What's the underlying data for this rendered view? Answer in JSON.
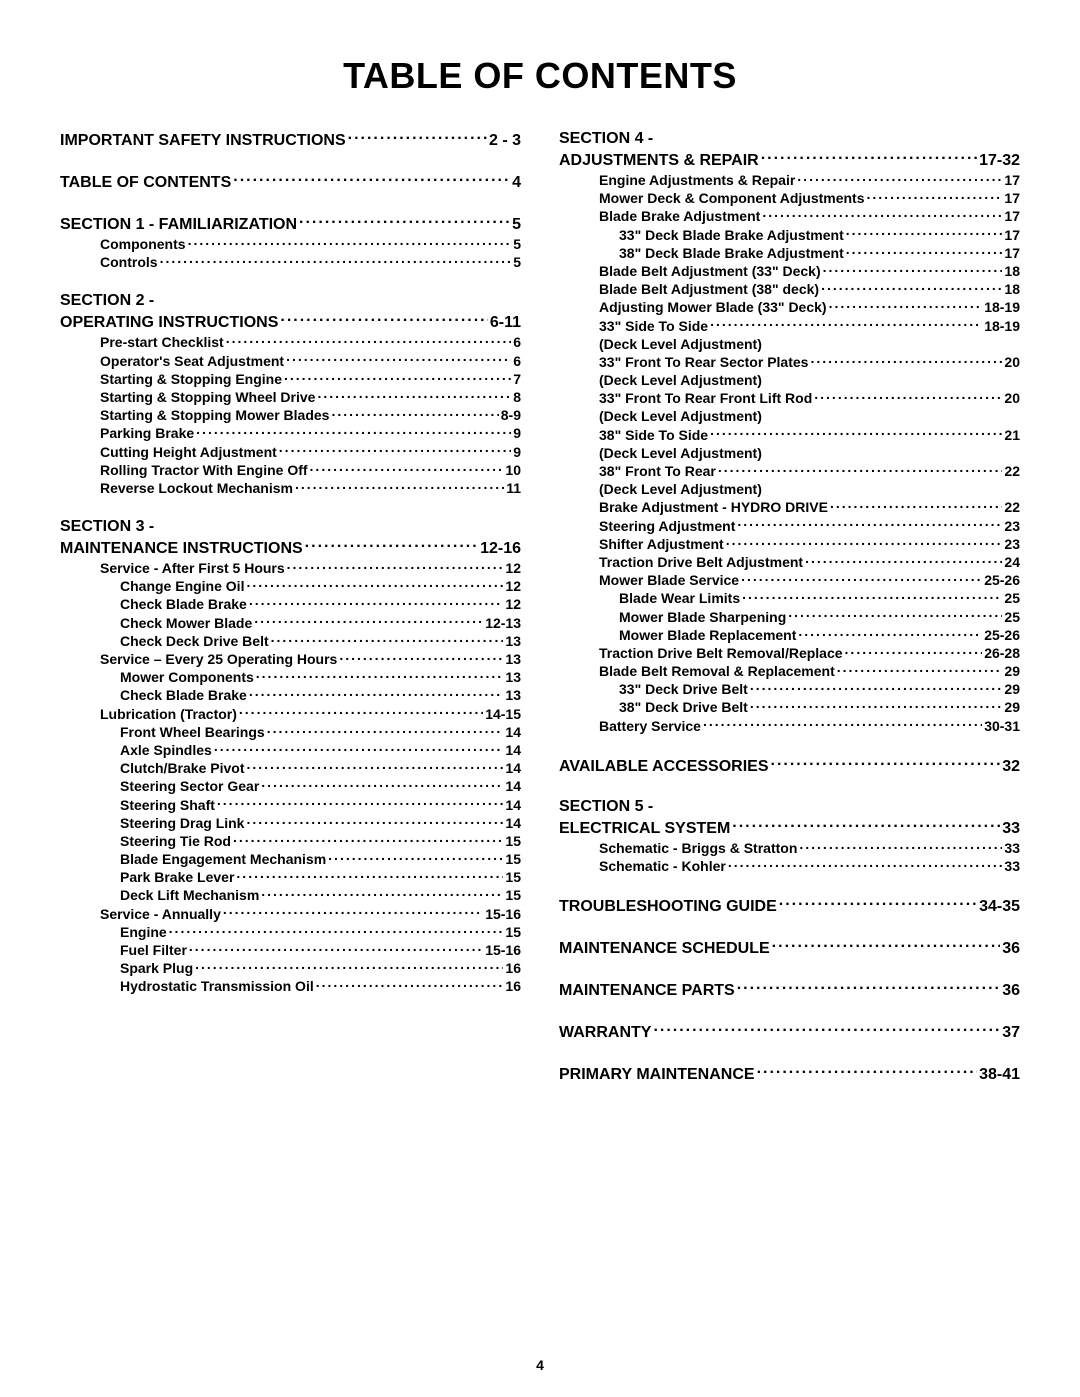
{
  "title": "TABLE OF CONTENTS",
  "page_number": "4",
  "left": [
    {
      "level": 0,
      "first": true,
      "label": "IMPORTANT SAFETY INSTRUCTIONS",
      "page": "2 - 3"
    },
    {
      "level": 0,
      "label": "TABLE OF CONTENTS",
      "page": "4"
    },
    {
      "level": 0,
      "label": "SECTION 1 - FAMILIARIZATION",
      "page": "5"
    },
    {
      "level": 1,
      "label": "Components",
      "page": "5"
    },
    {
      "level": 1,
      "label": "Controls",
      "page": "5"
    },
    {
      "level": 0,
      "label": "SECTION 2 -",
      "page": null
    },
    {
      "level": 0,
      "cont": true,
      "label": "OPERATING INSTRUCTIONS",
      "page": "6-11"
    },
    {
      "level": 1,
      "label": "Pre-start Checklist",
      "page": "6"
    },
    {
      "level": 1,
      "label": "Operator's Seat Adjustment",
      "page": "6"
    },
    {
      "level": 1,
      "label": "Starting & Stopping Engine",
      "page": "7"
    },
    {
      "level": 1,
      "label": "Starting & Stopping Wheel Drive",
      "page": "8"
    },
    {
      "level": 1,
      "label": "Starting & Stopping Mower Blades",
      "page": "8-9"
    },
    {
      "level": 1,
      "label": "Parking Brake",
      "page": "9"
    },
    {
      "level": 1,
      "label": "Cutting Height Adjustment",
      "page": "9"
    },
    {
      "level": 1,
      "label": "Rolling Tractor With Engine Off",
      "page": "10"
    },
    {
      "level": 1,
      "label": "Reverse Lockout Mechanism",
      "page": "11"
    },
    {
      "level": 0,
      "label": "SECTION 3 -",
      "page": null
    },
    {
      "level": 0,
      "cont": true,
      "label": "MAINTENANCE INSTRUCTIONS",
      "page": "12-16"
    },
    {
      "level": 1,
      "label": "Service - After First 5 Hours",
      "page": "12"
    },
    {
      "level": 2,
      "label": "Change Engine Oil",
      "page": "12"
    },
    {
      "level": 2,
      "label": "Check Blade Brake",
      "page": "12"
    },
    {
      "level": 2,
      "label": "Check Mower Blade",
      "page": "12-13"
    },
    {
      "level": 2,
      "label": "Check Deck Drive Belt",
      "page": "13"
    },
    {
      "level": 1,
      "label": "Service – Every 25 Operating Hours",
      "page": "13"
    },
    {
      "level": 2,
      "label": "Mower Components",
      "page": "13"
    },
    {
      "level": 2,
      "label": "Check Blade Brake",
      "page": "13"
    },
    {
      "level": 1,
      "label": "Lubrication (Tractor)",
      "page": "14-15"
    },
    {
      "level": 2,
      "label": "Front Wheel Bearings",
      "page": "14"
    },
    {
      "level": 2,
      "label": "Axle Spindles",
      "page": "14"
    },
    {
      "level": 2,
      "label": "Clutch/Brake Pivot",
      "page": "14"
    },
    {
      "level": 2,
      "label": "Steering Sector Gear",
      "page": "14"
    },
    {
      "level": 2,
      "label": "Steering Shaft",
      "page": "14"
    },
    {
      "level": 2,
      "label": "Steering Drag Link",
      "page": "14"
    },
    {
      "level": 2,
      "label": "Steering Tie Rod",
      "page": "15"
    },
    {
      "level": 2,
      "label": "Blade Engagement Mechanism",
      "page": "15"
    },
    {
      "level": 2,
      "label": "Park Brake Lever",
      "page": "15"
    },
    {
      "level": 2,
      "label": "Deck Lift Mechanism",
      "page": "15"
    },
    {
      "level": 1,
      "label": "Service - Annually",
      "page": "15-16"
    },
    {
      "level": 2,
      "label": "Engine",
      "page": "15"
    },
    {
      "level": 2,
      "label": "Fuel Filter",
      "page": "15-16"
    },
    {
      "level": 2,
      "label": "Spark Plug",
      "page": "16"
    },
    {
      "level": 2,
      "label": "Hydrostatic Transmission Oil",
      "page": "16"
    }
  ],
  "right": [
    {
      "level": 0,
      "first": true,
      "label": "SECTION 4 -",
      "page": null
    },
    {
      "level": 0,
      "cont": true,
      "label": "ADJUSTMENTS & REPAIR",
      "page": "17-32"
    },
    {
      "level": 1,
      "label": "Engine Adjustments & Repair",
      "page": "17"
    },
    {
      "level": 1,
      "label": "Mower Deck & Component Adjustments",
      "page": "17"
    },
    {
      "level": 1,
      "label": "Blade Brake Adjustment",
      "page": "17"
    },
    {
      "level": 2,
      "label": "33\" Deck Blade Brake Adjustment",
      "page": "17"
    },
    {
      "level": 2,
      "label": "38\" Deck Blade Brake Adjustment",
      "page": "17"
    },
    {
      "level": 1,
      "label": "Blade Belt Adjustment (33\" Deck)",
      "page": "18"
    },
    {
      "level": 1,
      "label": "Blade Belt Adjustment (38\" deck)",
      "page": "18"
    },
    {
      "level": 1,
      "label": "Adjusting Mower Blade (33\" Deck)",
      "page": "18-19"
    },
    {
      "level": 1,
      "label": "33\" Side To Side",
      "page": "18-19"
    },
    {
      "note": true,
      "label": "(Deck Level Adjustment)"
    },
    {
      "level": 1,
      "label": "33\" Front To Rear Sector Plates",
      "page": "20"
    },
    {
      "note": true,
      "label": "(Deck Level Adjustment)"
    },
    {
      "level": 1,
      "label": "33\" Front To Rear Front Lift Rod",
      "page": "20"
    },
    {
      "note": true,
      "label": "(Deck Level Adjustment)"
    },
    {
      "level": 1,
      "label": "38\" Side To Side",
      "page": "21"
    },
    {
      "note": true,
      "label": "(Deck Level Adjustment)"
    },
    {
      "level": 1,
      "label": "38\" Front To Rear",
      "page": "22"
    },
    {
      "note": true,
      "label": "(Deck Level Adjustment)"
    },
    {
      "level": 1,
      "label": "Brake Adjustment - HYDRO DRIVE",
      "page": "22"
    },
    {
      "level": 1,
      "label": "Steering Adjustment",
      "page": "23"
    },
    {
      "level": 1,
      "label": "Shifter Adjustment",
      "page": "23"
    },
    {
      "level": 1,
      "label": "Traction Drive Belt Adjustment",
      "page": "24"
    },
    {
      "level": 1,
      "label": "Mower Blade Service",
      "page": "25-26"
    },
    {
      "level": 2,
      "label": "Blade Wear Limits",
      "page": "25"
    },
    {
      "level": 2,
      "label": "Mower Blade Sharpening",
      "page": "25"
    },
    {
      "level": 2,
      "label": "Mower Blade Replacement",
      "page": "25-26"
    },
    {
      "level": 1,
      "label": "Traction Drive Belt Removal/Replace",
      "page": "26-28"
    },
    {
      "level": 1,
      "label": "Blade Belt Removal & Replacement",
      "page": "29"
    },
    {
      "level": 2,
      "label": "33\" Deck Drive Belt",
      "page": "29"
    },
    {
      "level": 2,
      "label": "38\" Deck Drive Belt",
      "page": "29"
    },
    {
      "level": 1,
      "label": "Battery Service",
      "page": "30-31"
    },
    {
      "level": 0,
      "label": "AVAILABLE ACCESSORIES",
      "page": "32"
    },
    {
      "level": 0,
      "label": "SECTION 5 -",
      "page": null
    },
    {
      "level": 0,
      "cont": true,
      "label": "ELECTRICAL SYSTEM",
      "page": "33"
    },
    {
      "level": 1,
      "label": "Schematic - Briggs & Stratton",
      "page": "33"
    },
    {
      "level": 1,
      "label": "Schematic - Kohler",
      "page": "33"
    },
    {
      "level": 0,
      "label": "TROUBLESHOOTING GUIDE",
      "page": "34-35"
    },
    {
      "level": 0,
      "label": "MAINTENANCE SCHEDULE",
      "page": "36"
    },
    {
      "level": 0,
      "label": "MAINTENANCE PARTS",
      "page": "36"
    },
    {
      "level": 0,
      "label": "WARRANTY  ",
      "page": "37"
    },
    {
      "level": 0,
      "label": "PRIMARY MAINTENANCE",
      "page": "38-41"
    }
  ]
}
